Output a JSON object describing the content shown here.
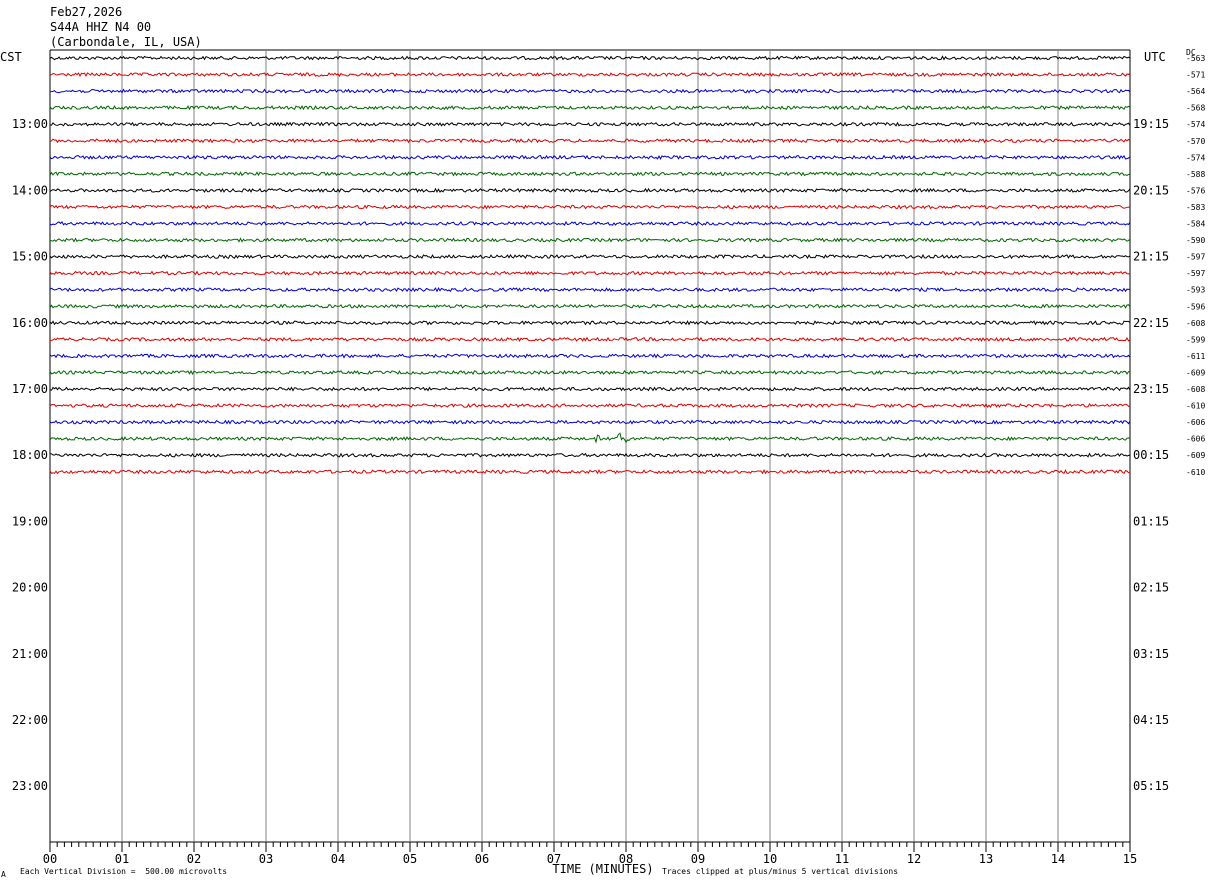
{
  "header": {
    "date": "Feb27,2026",
    "station": "S44A HHZ N4 00",
    "location": "(Carbondale, IL, USA)"
  },
  "labels": {
    "left_tz": "CST",
    "right_tz": "UTC",
    "dc": "DC",
    "scale": "Each Vertical Division =  500.00 microvolts",
    "clip": "Traces clipped at plus/minus 5 vertical divisions",
    "corner_mark": "A"
  },
  "colors": {
    "trace_cycle": [
      "#000000",
      "#dd0000",
      "#0000cc",
      "#006600"
    ],
    "grid": "#808080"
  },
  "chart_data": {
    "type": "line",
    "title": "Feb27,2026",
    "xlabel": "TIME (MINUTES)",
    "xlim": [
      0,
      15
    ],
    "x_ticks": [
      "00",
      "01",
      "02",
      "03",
      "04",
      "05",
      "06",
      "07",
      "08",
      "09",
      "10",
      "11",
      "12",
      "13",
      "14",
      "15"
    ],
    "lines_per_hour": 4,
    "left_hour_labels": [
      "13:00",
      "14:00",
      "15:00",
      "16:00",
      "17:00",
      "18:00",
      "19:00",
      "20:00",
      "21:00",
      "22:00",
      "23:00"
    ],
    "right_hour_labels": [
      "19:15",
      "20:15",
      "21:15",
      "22:15",
      "23:15",
      "00:15",
      "01:15",
      "02:15",
      "03:15",
      "04:15",
      "05:15"
    ],
    "dc_offsets": [
      -563,
      -571,
      -564,
      -568,
      -574,
      -570,
      -574,
      -588,
      -576,
      -583,
      -584,
      -590,
      -597,
      -597,
      -593,
      -596,
      -608,
      -599,
      -611,
      -609,
      -608,
      -610,
      -606,
      -606,
      -609,
      -610
    ],
    "events": [
      {
        "trace_index": 23,
        "minute": 7.95,
        "amplitude": "large"
      },
      {
        "trace_index": 23,
        "minute": 7.6,
        "amplitude": "small"
      }
    ]
  }
}
